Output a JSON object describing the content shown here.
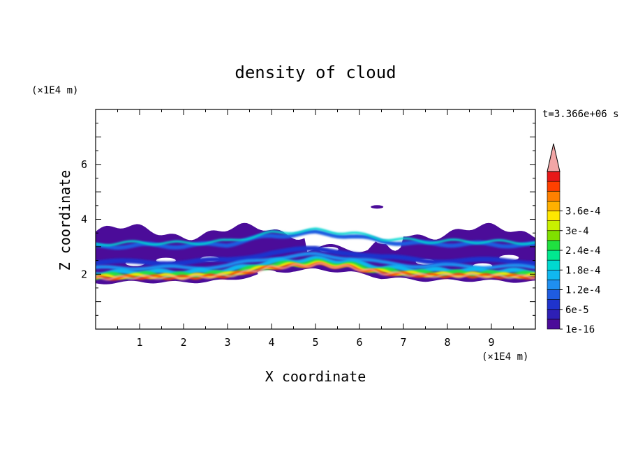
{
  "chart_data": {
    "type": "heatmap",
    "title": "density of cloud",
    "xlabel": "X coordinate",
    "ylabel": "Z coordinate",
    "x_unit": "(×1E4 m)",
    "y_unit": "(×1E4 m)",
    "time_label": "t=3.366e+06 s",
    "xlim": [
      0,
      10
    ],
    "ylim": [
      0,
      8
    ],
    "x_ticks": [
      "1",
      "2",
      "3",
      "4",
      "5",
      "6",
      "7",
      "8",
      "9"
    ],
    "y_ticks": [
      "2",
      "4",
      "6"
    ],
    "grid": false,
    "colorbar": {
      "placement": "right",
      "labels": [
        "1e-16",
        "6e-5",
        "1.2e-4",
        "1.8e-4",
        "2.4e-4",
        "3e-4",
        "3.6e-4"
      ],
      "colors": [
        "#4b0c99",
        "#2e1fb5",
        "#1f33cc",
        "#1f5ce0",
        "#1f8ff0",
        "#10b8f0",
        "#00d8d0",
        "#00e890",
        "#20e040",
        "#80e000",
        "#c8f000",
        "#ffe800",
        "#ffb000",
        "#ff8000",
        "#ff4000",
        "#e81818"
      ],
      "overflow_color": "#f2a6a6"
    },
    "cloud_layer": {
      "base_z": 1.6,
      "top_z": 3.8,
      "isolated_patch": {
        "x": 6.4,
        "z": 4.45
      },
      "dense_band": [
        [
          0,
          1.85
        ],
        [
          1,
          1.9
        ],
        [
          2,
          1.88
        ],
        [
          3,
          1.95
        ],
        [
          4,
          2.25
        ],
        [
          5,
          2.35
        ],
        [
          5.8,
          2.25
        ],
        [
          6.5,
          2.05
        ],
        [
          7.5,
          1.95
        ],
        [
          8.5,
          1.95
        ],
        [
          10,
          1.9
        ]
      ]
    }
  }
}
